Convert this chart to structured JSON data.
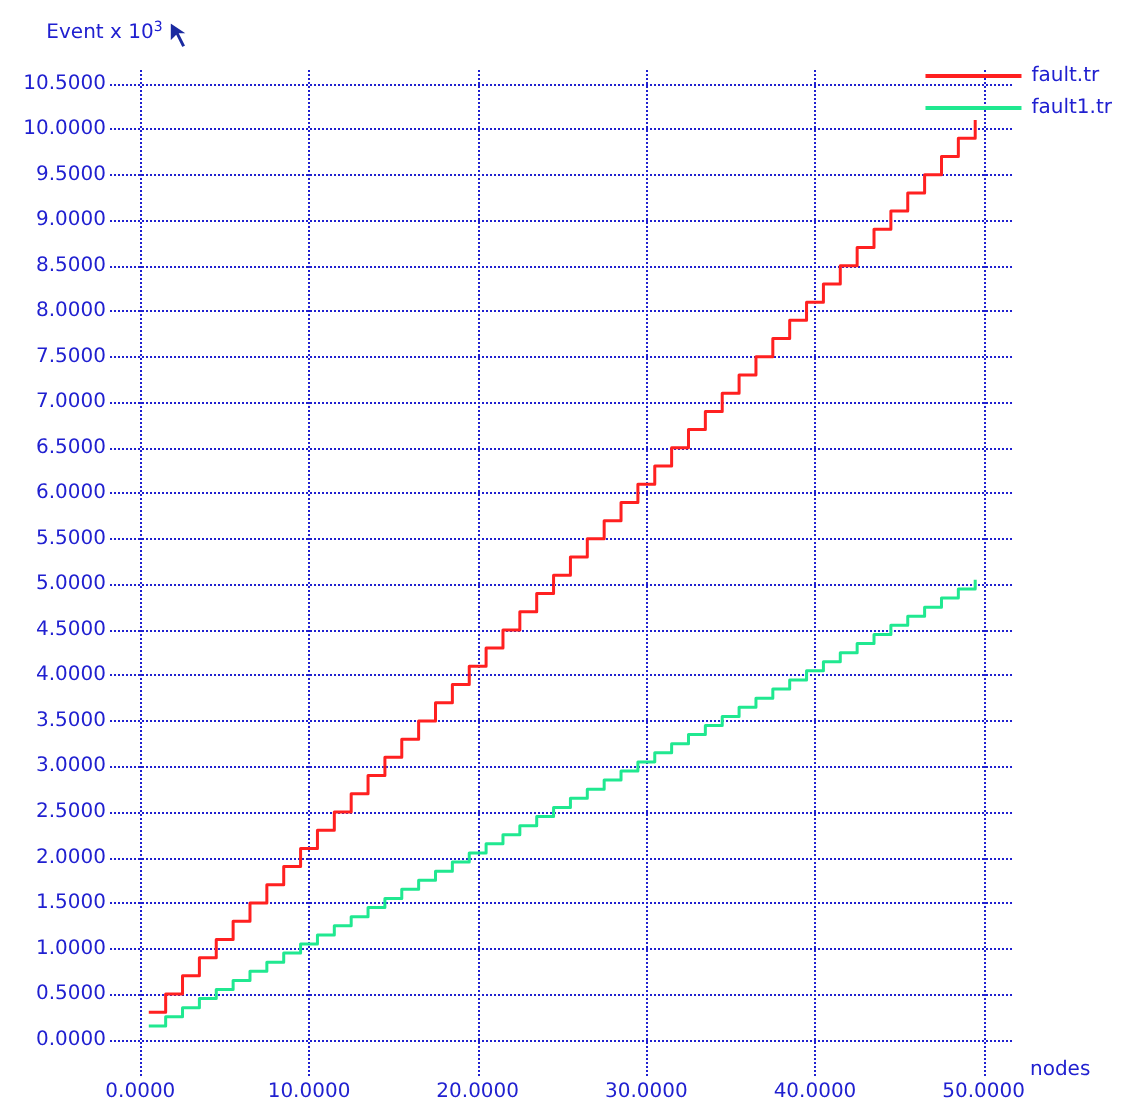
{
  "chart_data": {
    "type": "step",
    "ylabel": "Event x 10$^{3}$",
    "xlabel": "nodes",
    "x": [
      0.5,
      1.5,
      2.5,
      3.5,
      4.5,
      5.5,
      6.5,
      7.5,
      8.5,
      9.5,
      10.5,
      11.5,
      12.5,
      13.5,
      14.5,
      15.5,
      16.5,
      17.5,
      18.5,
      19.5,
      20.5,
      21.5,
      22.5,
      23.5,
      24.5,
      25.5,
      26.5,
      27.5,
      28.5,
      29.5,
      30.5,
      31.5,
      32.5,
      33.5,
      34.5,
      35.5,
      36.5,
      37.5,
      38.5,
      39.5,
      40.5,
      41.5,
      42.5,
      43.5,
      44.5,
      45.5,
      46.5,
      47.5,
      48.5,
      49.5
    ],
    "series": [
      {
        "name": "fault.tr",
        "color": "#ff2020",
        "values": [
          0.3,
          0.5,
          0.7,
          0.9,
          1.1,
          1.3,
          1.5,
          1.7,
          1.9,
          2.1,
          2.3,
          2.5,
          2.7,
          2.9,
          3.1,
          3.3,
          3.5,
          3.7,
          3.9,
          4.1,
          4.3,
          4.5,
          4.7,
          4.9,
          5.1,
          5.3,
          5.5,
          5.7,
          5.9,
          6.1,
          6.3,
          6.5,
          6.7,
          6.9,
          7.1,
          7.3,
          7.5,
          7.7,
          7.9,
          8.1,
          8.3,
          8.5,
          8.7,
          8.9,
          9.1,
          9.3,
          9.5,
          9.7,
          9.9,
          10.1
        ]
      },
      {
        "name": "fault1.tr",
        "color": "#20e890",
        "values": [
          0.15,
          0.25,
          0.35,
          0.45,
          0.55,
          0.65,
          0.75,
          0.85,
          0.95,
          1.05,
          1.15,
          1.25,
          1.35,
          1.45,
          1.55,
          1.65,
          1.75,
          1.85,
          1.95,
          2.05,
          2.15,
          2.25,
          2.35,
          2.45,
          2.55,
          2.65,
          2.75,
          2.85,
          2.95,
          3.05,
          3.15,
          3.25,
          3.35,
          3.45,
          3.55,
          3.65,
          3.75,
          3.85,
          3.95,
          4.05,
          4.15,
          4.25,
          4.35,
          4.45,
          4.55,
          4.65,
          4.75,
          4.85,
          4.95,
          5.05
        ]
      }
    ],
    "xlim": [
      -1.8,
      51.8
    ],
    "xticks": [
      {
        "value": 0,
        "label": "0.0000"
      },
      {
        "value": 10,
        "label": "10.0000"
      },
      {
        "value": 20,
        "label": "20.0000"
      },
      {
        "value": 30,
        "label": "30.0000"
      },
      {
        "value": 40,
        "label": "40.0000"
      },
      {
        "value": 50,
        "label": "50.0000"
      }
    ],
    "ylim": [
      -0.4,
      10.65
    ],
    "yticks": [
      {
        "value": 0,
        "label": "0.0000"
      },
      {
        "value": 0.5,
        "label": "0.5000"
      },
      {
        "value": 1,
        "label": "1.0000"
      },
      {
        "value": 1.5,
        "label": "1.5000"
      },
      {
        "value": 2,
        "label": "2.0000"
      },
      {
        "value": 2.5,
        "label": "2.5000"
      },
      {
        "value": 3,
        "label": "3.0000"
      },
      {
        "value": 3.5,
        "label": "3.5000"
      },
      {
        "value": 4,
        "label": "4.0000"
      },
      {
        "value": 4.5,
        "label": "4.5000"
      },
      {
        "value": 5,
        "label": "5.0000"
      },
      {
        "value": 5.5,
        "label": "5.5000"
      },
      {
        "value": 6,
        "label": "6.0000"
      },
      {
        "value": 6.5,
        "label": "6.5000"
      },
      {
        "value": 7,
        "label": "7.0000"
      },
      {
        "value": 7.5,
        "label": "7.5000"
      },
      {
        "value": 8,
        "label": "8.0000"
      },
      {
        "value": 8.5,
        "label": "8.5000"
      },
      {
        "value": 9,
        "label": "9.0000"
      },
      {
        "value": 9.5,
        "label": "9.5000"
      },
      {
        "value": 10,
        "label": "10.0000"
      },
      {
        "value": 10.5,
        "label": "10.5000"
      }
    ],
    "grid": true,
    "legend": "top right",
    "marker": "none",
    "line_style": "solid"
  }
}
